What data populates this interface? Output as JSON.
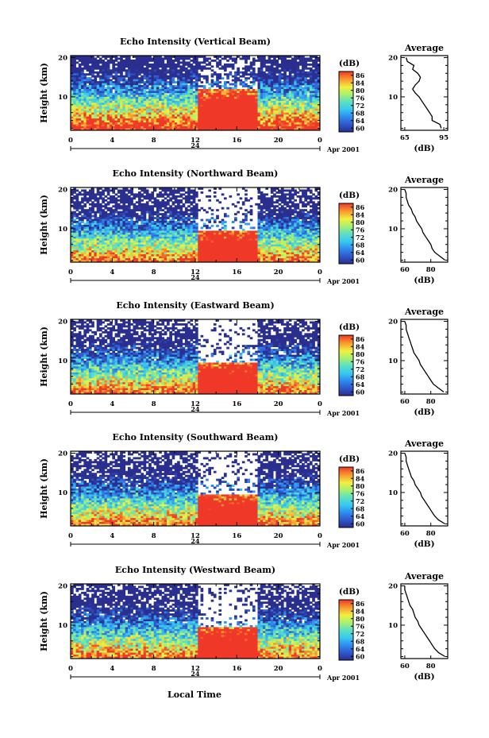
{
  "chart_data": {
    "type": "heatmap",
    "xlabel": "Local Time",
    "x_ticks": [
      "0",
      "4",
      "8",
      "12",
      "16",
      "20",
      "0"
    ],
    "xlim_hours": [
      0,
      24
    ],
    "date_label": "24",
    "month_year": "Apr 2001",
    "ylabel": "Height (km)",
    "y_ticks": [
      "10",
      "20"
    ],
    "ylim_km": [
      1.5,
      20.5
    ],
    "colorbar": {
      "unit": "(dB)",
      "range": [
        60,
        87
      ],
      "ticks": [
        "60",
        "64",
        "68",
        "72",
        "76",
        "80",
        "84",
        "86"
      ]
    },
    "average_title": "Average",
    "average_xlabel": "(dB)",
    "height_profile_km": [
      2,
      3,
      4,
      5,
      6,
      7,
      8,
      9,
      10,
      11,
      12,
      13,
      14,
      15,
      16,
      17,
      18,
      19,
      20
    ],
    "panels": [
      {
        "title": "Echo Intensity (Vertical Beam)",
        "avg_ticks": [
          "65",
          "95"
        ],
        "avg_xlim": [
          62,
          98
        ],
        "average_profile_db": [
          93,
          92,
          86,
          86,
          84,
          82,
          80,
          78,
          76,
          73,
          71,
          73,
          76,
          77,
          75,
          71,
          72,
          67,
          66
        ]
      },
      {
        "title": "Echo Intensity (Northward Beam)",
        "avg_ticks": [
          "60",
          "80"
        ],
        "avg_xlim": [
          57,
          93
        ],
        "average_profile_db": [
          91,
          87,
          83,
          81,
          80,
          78,
          76,
          74,
          73,
          71,
          69,
          68,
          66,
          65,
          63,
          62,
          61,
          61,
          60
        ]
      },
      {
        "title": "Echo Intensity (Eastward Beam)",
        "avg_ticks": [
          "60",
          "80"
        ],
        "avg_xlim": [
          57,
          93
        ],
        "average_profile_db": [
          90,
          86,
          82,
          80,
          78,
          76,
          74,
          72,
          71,
          69,
          67,
          66,
          65,
          64,
          63,
          62,
          61,
          61,
          60
        ]
      },
      {
        "title": "Echo Intensity (Southward Beam)",
        "avg_ticks": [
          "60",
          "80"
        ],
        "avg_xlim": [
          57,
          93
        ],
        "average_profile_db": [
          91,
          86,
          83,
          81,
          79,
          77,
          75,
          73,
          72,
          70,
          68,
          67,
          65,
          64,
          63,
          62,
          61,
          61,
          60
        ]
      },
      {
        "title": "Echo Intensity (Westward Beam)",
        "avg_ticks": [
          "60",
          "80"
        ],
        "avg_xlim": [
          57,
          93
        ],
        "average_profile_db": [
          91,
          86,
          83,
          81,
          79,
          77,
          75,
          73,
          71,
          70,
          68,
          67,
          66,
          64,
          63,
          62,
          61,
          60,
          60
        ]
      }
    ]
  }
}
